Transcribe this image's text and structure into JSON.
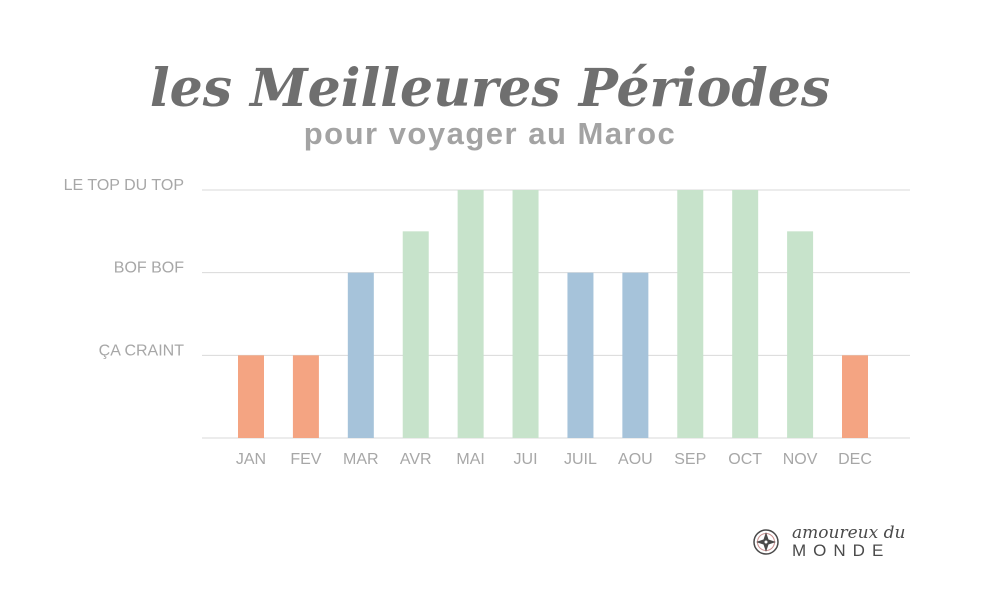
{
  "chart_data": {
    "type": "bar",
    "title": "les Meilleures Périodes",
    "subtitle": "pour voyager au Maroc",
    "categories": [
      "JAN",
      "FEV",
      "MAR",
      "AVR",
      "MAI",
      "JUI",
      "JUIL",
      "AOU",
      "SEP",
      "OCT",
      "NOV",
      "DEC"
    ],
    "values": [
      1,
      1,
      2,
      2.5,
      3,
      3,
      2,
      2,
      3,
      3,
      2.5,
      1
    ],
    "bar_colors": [
      "#f4a482",
      "#f4a482",
      "#a6c3da",
      "#c7e3cb",
      "#c7e3cb",
      "#c7e3cb",
      "#a6c3da",
      "#a6c3da",
      "#c7e3cb",
      "#c7e3cb",
      "#c7e3cb",
      "#f4a482"
    ],
    "ytick_values": [
      1,
      2,
      3
    ],
    "ytick_labels": [
      "ÇA CRAINT",
      "BOF BOF",
      "LE TOP DU TOP"
    ],
    "ylim": [
      0,
      3
    ],
    "grid": true,
    "xlabel": "",
    "ylabel": ""
  },
  "branding": {
    "line1": "amoureux du",
    "line2": "MONDE",
    "logo_color": "#4a4a4a",
    "logo_accent": "#c98e8e",
    "logo_icon": "compass-star-icon"
  }
}
